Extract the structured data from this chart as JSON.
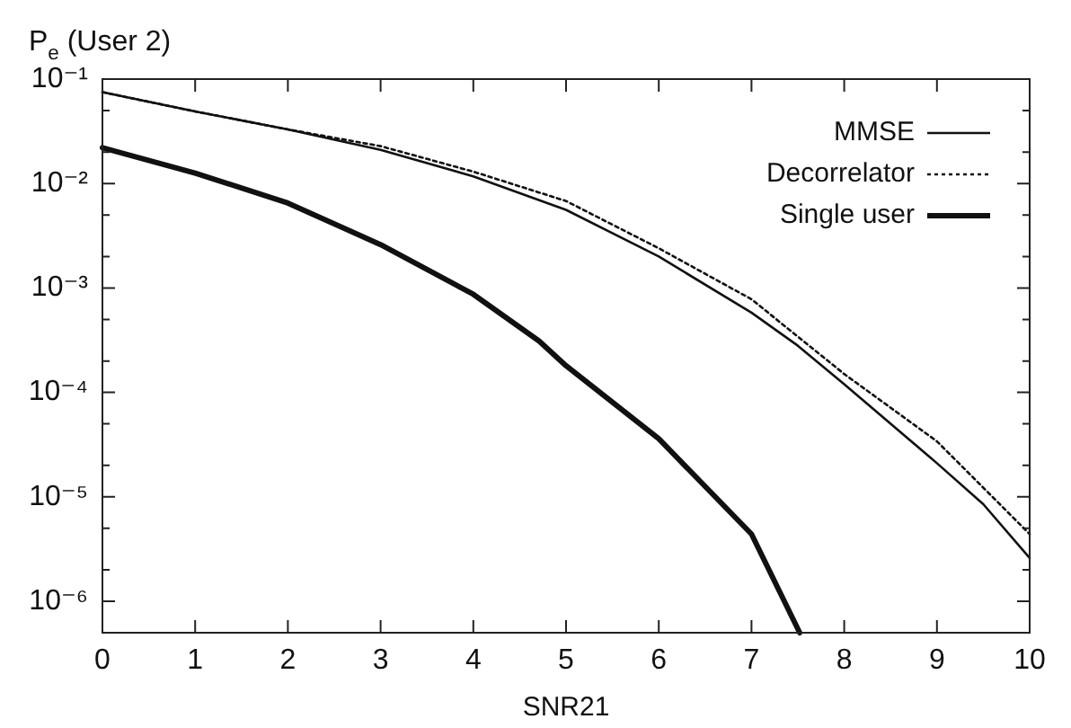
{
  "chart_data": {
    "type": "line",
    "xlabel": "SNR21",
    "ylabel": "P$_{e}$ (User 2)",
    "log": "y",
    "grid": false,
    "legend": "top right",
    "marker": "none",
    "xlim": [
      0,
      10
    ],
    "ylim": [
      5e-07,
      0.1
    ],
    "xticks": [
      0,
      1,
      2,
      3,
      4,
      5,
      6,
      7,
      8,
      9,
      10
    ],
    "yticks": [
      {
        "value": 0.1,
        "label": "10⁻¹"
      },
      {
        "value": 0.05,
        "label": null
      },
      {
        "value": 0.02,
        "label": null
      },
      {
        "value": 0.01,
        "label": "10⁻²"
      },
      {
        "value": 0.005,
        "label": null
      },
      {
        "value": 0.002,
        "label": null
      },
      {
        "value": 0.001,
        "label": "10⁻³"
      },
      {
        "value": 0.0005,
        "label": null
      },
      {
        "value": 0.0002,
        "label": null
      },
      {
        "value": 0.0001,
        "label": "10⁻⁴"
      },
      {
        "value": 5e-05,
        "label": null
      },
      {
        "value": 2e-05,
        "label": null
      },
      {
        "value": 1e-05,
        "label": "10⁻⁵"
      },
      {
        "value": 5e-06,
        "label": null
      },
      {
        "value": 2e-06,
        "label": null
      },
      {
        "value": 1e-06,
        "label": "10⁻⁶"
      }
    ],
    "series": [
      {
        "name": "MMSE",
        "color": "#111111",
        "line_style": "solid",
        "x": [
          0,
          1,
          2,
          3,
          4,
          5,
          6,
          7,
          7.5,
          8,
          9,
          9.5,
          10
        ],
        "values": [
          0.075,
          0.049,
          0.033,
          0.021,
          0.0117,
          0.0056,
          0.002,
          0.00058,
          0.00028,
          0.00012,
          2.1e-05,
          8.5e-06,
          2.6e-06
        ]
      },
      {
        "name": "Decorrelator",
        "color": "#111111",
        "line_style": "dotted",
        "x": [
          0,
          1,
          2,
          3,
          4,
          5,
          6,
          7,
          8,
          9,
          10
        ],
        "values": [
          0.075,
          0.049,
          0.033,
          0.0228,
          0.013,
          0.0068,
          0.0024,
          0.00078,
          0.00015,
          3.4e-05,
          4.4e-06
        ]
      },
      {
        "name": "Single user",
        "color": "#111111",
        "line_style": "solid",
        "x": [
          0,
          1,
          2,
          3,
          4,
          4.71,
          5,
          6,
          7,
          7.52
        ],
        "values": [
          0.022,
          0.0126,
          0.0065,
          0.0026,
          0.00087,
          0.00031,
          0.00018,
          3.6e-05,
          4.4e-06,
          5e-07
        ]
      }
    ]
  }
}
